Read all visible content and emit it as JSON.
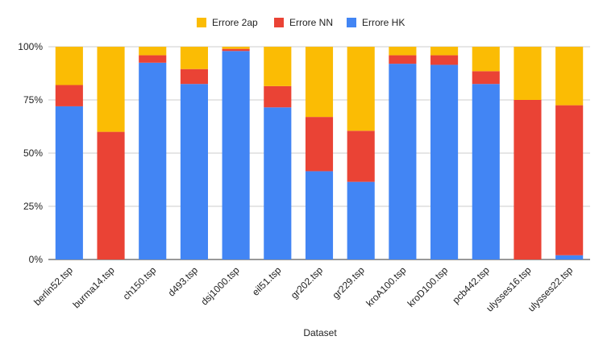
{
  "chart_data": {
    "type": "bar",
    "stacked": true,
    "normalized": true,
    "title": "",
    "xlabel": "Dataset",
    "ylabel": "",
    "ylim": [
      0,
      100
    ],
    "y_ticks": [
      "0%",
      "25%",
      "50%",
      "75%",
      "100%"
    ],
    "y_tick_values": [
      0,
      25,
      50,
      75,
      100
    ],
    "grid": true,
    "legend_position": "top",
    "categories": [
      "berlin52.tsp",
      "burma14.tsp",
      "ch150.tsp",
      "d493.tsp",
      "dsj1000.tsp",
      "eil51.tsp",
      "gr202.tsp",
      "gr229.tsp",
      "kroA100.tsp",
      "kroD100.tsp",
      "pcb442.tsp",
      "ulysses16.tsp",
      "ulysses22.tsp"
    ],
    "series": [
      {
        "name": "Errore HK",
        "color": "#4285F4",
        "values": [
          72,
          0,
          92.5,
          82.5,
          98,
          71.5,
          41.5,
          36.5,
          92,
          91.5,
          82.5,
          0,
          2
        ]
      },
      {
        "name": "Errore NN",
        "color": "#EA4335",
        "values": [
          10,
          60,
          3.5,
          7,
          1,
          10,
          25.5,
          24,
          4,
          4.5,
          6,
          75,
          70.5
        ]
      },
      {
        "name": "Errore 2ap",
        "color": "#FBBC04",
        "values": [
          18,
          40,
          4,
          10.5,
          1,
          18.5,
          33,
          39.5,
          4,
          4,
          11.5,
          25,
          27.5
        ]
      }
    ],
    "legend_order": [
      "Errore 2ap",
      "Errore NN",
      "Errore HK"
    ]
  }
}
